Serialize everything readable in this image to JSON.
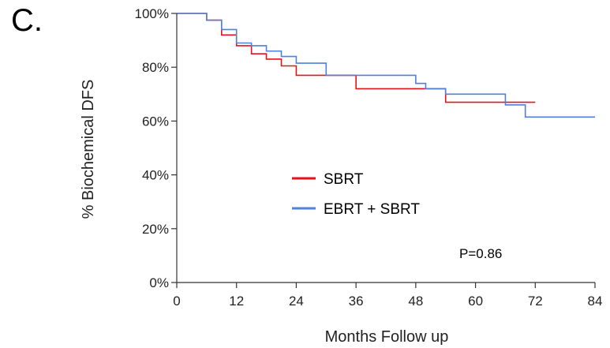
{
  "panel_label": "C.",
  "chart_data": {
    "type": "line",
    "title": "",
    "xlabel": "Months Follow up",
    "ylabel": "% Biochemical DFS",
    "xlim": [
      0,
      84
    ],
    "ylim": [
      0,
      100
    ],
    "x_ticks": [
      0,
      12,
      24,
      36,
      48,
      60,
      72,
      84
    ],
    "y_ticks": [
      0,
      20,
      40,
      60,
      80,
      100
    ],
    "y_tick_labels": [
      "0%",
      "20%",
      "40%",
      "60%",
      "80%",
      "100%"
    ],
    "step": true,
    "grid": false,
    "legend_placement": "center-left",
    "annotation": "P=0.86",
    "series": [
      {
        "name": "SBRT",
        "color": "#e8121c",
        "x": [
          0,
          6,
          9,
          12,
          15,
          18,
          21,
          24,
          36,
          54,
          72
        ],
        "y": [
          100,
          97.5,
          92,
          88,
          85,
          83,
          80.5,
          77,
          72,
          67,
          67
        ]
      },
      {
        "name": "EBRT + SBRT",
        "color": "#4f81d8",
        "x": [
          0,
          6,
          9,
          12,
          15,
          18,
          21,
          24,
          30,
          48,
          50,
          54,
          66,
          70,
          84
        ],
        "y": [
          100,
          97.5,
          94,
          89,
          88,
          86,
          84,
          81.5,
          77,
          74,
          72,
          70,
          66,
          61.5,
          61.5
        ]
      }
    ]
  }
}
